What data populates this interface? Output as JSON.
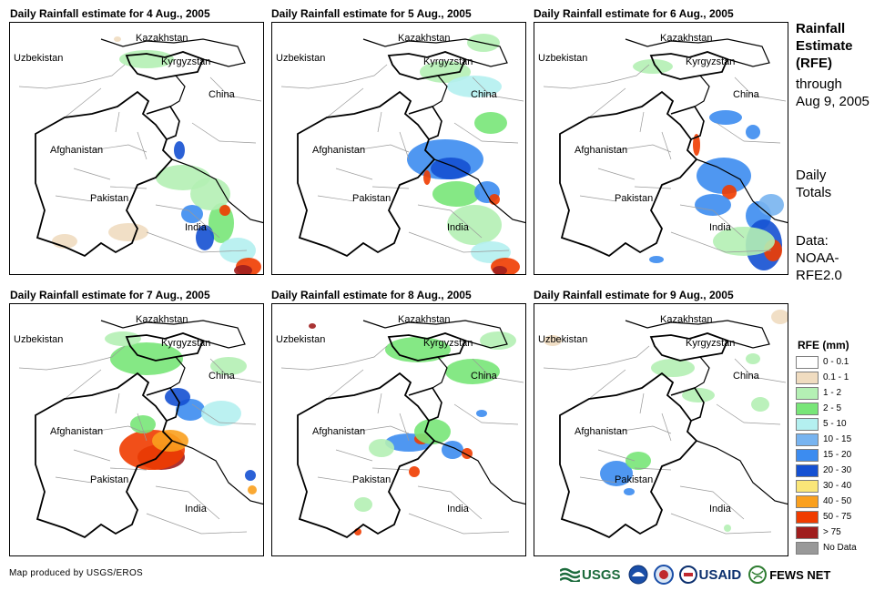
{
  "panels": [
    {
      "title": "Daily Rainfall estimate for 4 Aug., 2005"
    },
    {
      "title": "Daily Rainfall estimate for 5 Aug., 2005"
    },
    {
      "title": "Daily Rainfall estimate for 6 Aug., 2005"
    },
    {
      "title": "Daily Rainfall estimate for 7 Aug., 2005"
    },
    {
      "title": "Daily Rainfall estimate for 8 Aug., 2005"
    },
    {
      "title": "Daily Rainfall estimate for 9 Aug., 2005"
    }
  ],
  "map_labels": {
    "kazakhstan": "Kazakhstan",
    "uzbekistan": "Uzbekistan",
    "kyrgyzstan": "Kyrgyzstan",
    "china": "China",
    "afghanistan": "Afghanistan",
    "pakistan": "Pakistan",
    "india": "India"
  },
  "side": {
    "title_lines": [
      "Rainfall",
      "Estimate",
      "(RFE)"
    ],
    "sub_lines": [
      "through",
      "Aug 9, 2005"
    ],
    "daily_lines": [
      "Daily",
      "Totals"
    ],
    "data_lines": [
      "Data:",
      "NOAA-",
      "RFE2.0"
    ]
  },
  "legend": {
    "title": "RFE (mm)",
    "items": [
      {
        "label": "0 - 0.1",
        "color": "#ffffff"
      },
      {
        "label": "0.1 - 1",
        "color": "#f0dcc0"
      },
      {
        "label": "1 - 2",
        "color": "#b4f0b4"
      },
      {
        "label": "2 - 5",
        "color": "#78e678"
      },
      {
        "label": "5 - 10",
        "color": "#b4f0f0"
      },
      {
        "label": "10 - 15",
        "color": "#78b4f0"
      },
      {
        "label": "15 - 20",
        "color": "#3c8cf0"
      },
      {
        "label": "20 - 30",
        "color": "#1450d2"
      },
      {
        "label": "30 - 40",
        "color": "#fae678"
      },
      {
        "label": "40 - 50",
        "color": "#faa01e"
      },
      {
        "label": "50 - 75",
        "color": "#f03c00"
      },
      {
        "label": "> 75",
        "color": "#a01e1e"
      },
      {
        "label": "No Data",
        "color": "#999999"
      }
    ]
  },
  "credit": "Map produced by USGS/EROS",
  "logos": {
    "usgs": "USGS",
    "usaid": "USAID",
    "fewsnet": "FEWS NET"
  }
}
